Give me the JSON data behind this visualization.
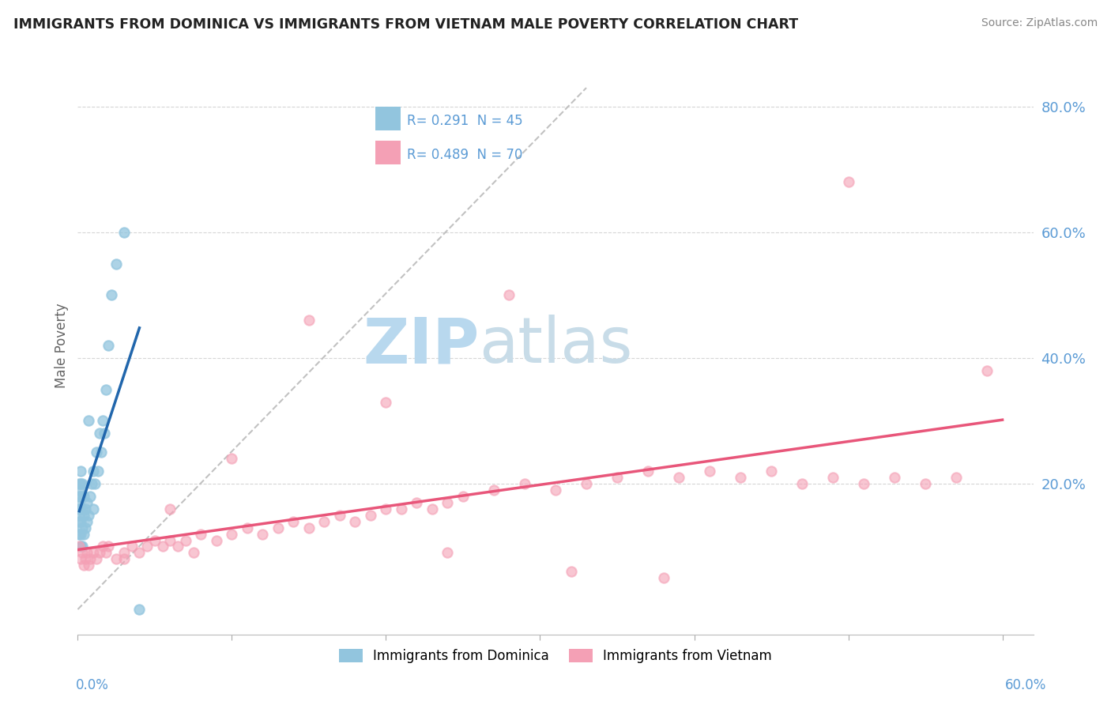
{
  "title": "IMMIGRANTS FROM DOMINICA VS IMMIGRANTS FROM VIETNAM MALE POVERTY CORRELATION CHART",
  "source": "Source: ZipAtlas.com",
  "ylabel": "Male Poverty",
  "xlim": [
    0.0,
    0.62
  ],
  "ylim": [
    -0.04,
    0.88
  ],
  "dominica_R": 0.291,
  "dominica_N": 45,
  "vietnam_R": 0.489,
  "vietnam_N": 70,
  "dominica_color": "#92c5de",
  "vietnam_color": "#f4a0b5",
  "dominica_trend_color": "#2166ac",
  "vietnam_trend_color": "#e8567a",
  "diag_color": "#bbbbbb",
  "watermark_ZIP_color": "#c8dff0",
  "watermark_atlas_color": "#d8e8f0",
  "background_color": "#ffffff",
  "grid_color": "#cccccc",
  "title_color": "#222222",
  "axis_label_color": "#5b9bd5",
  "legend_border_color": "#cccccc",
  "ytick_positions": [
    0.2,
    0.4,
    0.6,
    0.8
  ],
  "ytick_labels": [
    "20.0%",
    "40.0%",
    "60.0%",
    "80.0%"
  ],
  "dominica_x": [
    0.001,
    0.001,
    0.001,
    0.001,
    0.001,
    0.001,
    0.001,
    0.001,
    0.002,
    0.002,
    0.002,
    0.002,
    0.002,
    0.002,
    0.002,
    0.003,
    0.003,
    0.003,
    0.003,
    0.004,
    0.004,
    0.004,
    0.005,
    0.005,
    0.006,
    0.006,
    0.007,
    0.007,
    0.008,
    0.009,
    0.01,
    0.01,
    0.011,
    0.012,
    0.013,
    0.014,
    0.015,
    0.016,
    0.017,
    0.018,
    0.02,
    0.022,
    0.025,
    0.03,
    0.04
  ],
  "dominica_y": [
    0.12,
    0.14,
    0.15,
    0.16,
    0.17,
    0.18,
    0.19,
    0.2,
    0.1,
    0.12,
    0.14,
    0.16,
    0.18,
    0.2,
    0.22,
    0.1,
    0.13,
    0.16,
    0.2,
    0.12,
    0.15,
    0.18,
    0.13,
    0.16,
    0.14,
    0.17,
    0.15,
    0.3,
    0.18,
    0.2,
    0.16,
    0.22,
    0.2,
    0.25,
    0.22,
    0.28,
    0.25,
    0.3,
    0.28,
    0.35,
    0.42,
    0.5,
    0.55,
    0.6,
    0.0
  ],
  "vietnam_x": [
    0.001,
    0.002,
    0.003,
    0.004,
    0.005,
    0.006,
    0.007,
    0.008,
    0.01,
    0.012,
    0.014,
    0.016,
    0.018,
    0.02,
    0.025,
    0.03,
    0.035,
    0.04,
    0.045,
    0.05,
    0.055,
    0.06,
    0.065,
    0.07,
    0.075,
    0.08,
    0.09,
    0.1,
    0.11,
    0.12,
    0.13,
    0.14,
    0.15,
    0.16,
    0.17,
    0.18,
    0.19,
    0.2,
    0.21,
    0.22,
    0.23,
    0.24,
    0.25,
    0.27,
    0.29,
    0.31,
    0.33,
    0.35,
    0.37,
    0.39,
    0.41,
    0.43,
    0.45,
    0.47,
    0.49,
    0.51,
    0.53,
    0.55,
    0.57,
    0.59,
    0.38,
    0.32,
    0.28,
    0.24,
    0.2,
    0.15,
    0.1,
    0.06,
    0.03,
    0.5
  ],
  "vietnam_y": [
    0.1,
    0.08,
    0.09,
    0.07,
    0.08,
    0.09,
    0.07,
    0.08,
    0.09,
    0.08,
    0.09,
    0.1,
    0.09,
    0.1,
    0.08,
    0.09,
    0.1,
    0.09,
    0.1,
    0.11,
    0.1,
    0.11,
    0.1,
    0.11,
    0.09,
    0.12,
    0.11,
    0.12,
    0.13,
    0.12,
    0.13,
    0.14,
    0.13,
    0.14,
    0.15,
    0.14,
    0.15,
    0.16,
    0.16,
    0.17,
    0.16,
    0.17,
    0.18,
    0.19,
    0.2,
    0.19,
    0.2,
    0.21,
    0.22,
    0.21,
    0.22,
    0.21,
    0.22,
    0.2,
    0.21,
    0.2,
    0.21,
    0.2,
    0.21,
    0.38,
    0.05,
    0.06,
    0.5,
    0.09,
    0.33,
    0.46,
    0.24,
    0.16,
    0.08,
    0.68
  ]
}
